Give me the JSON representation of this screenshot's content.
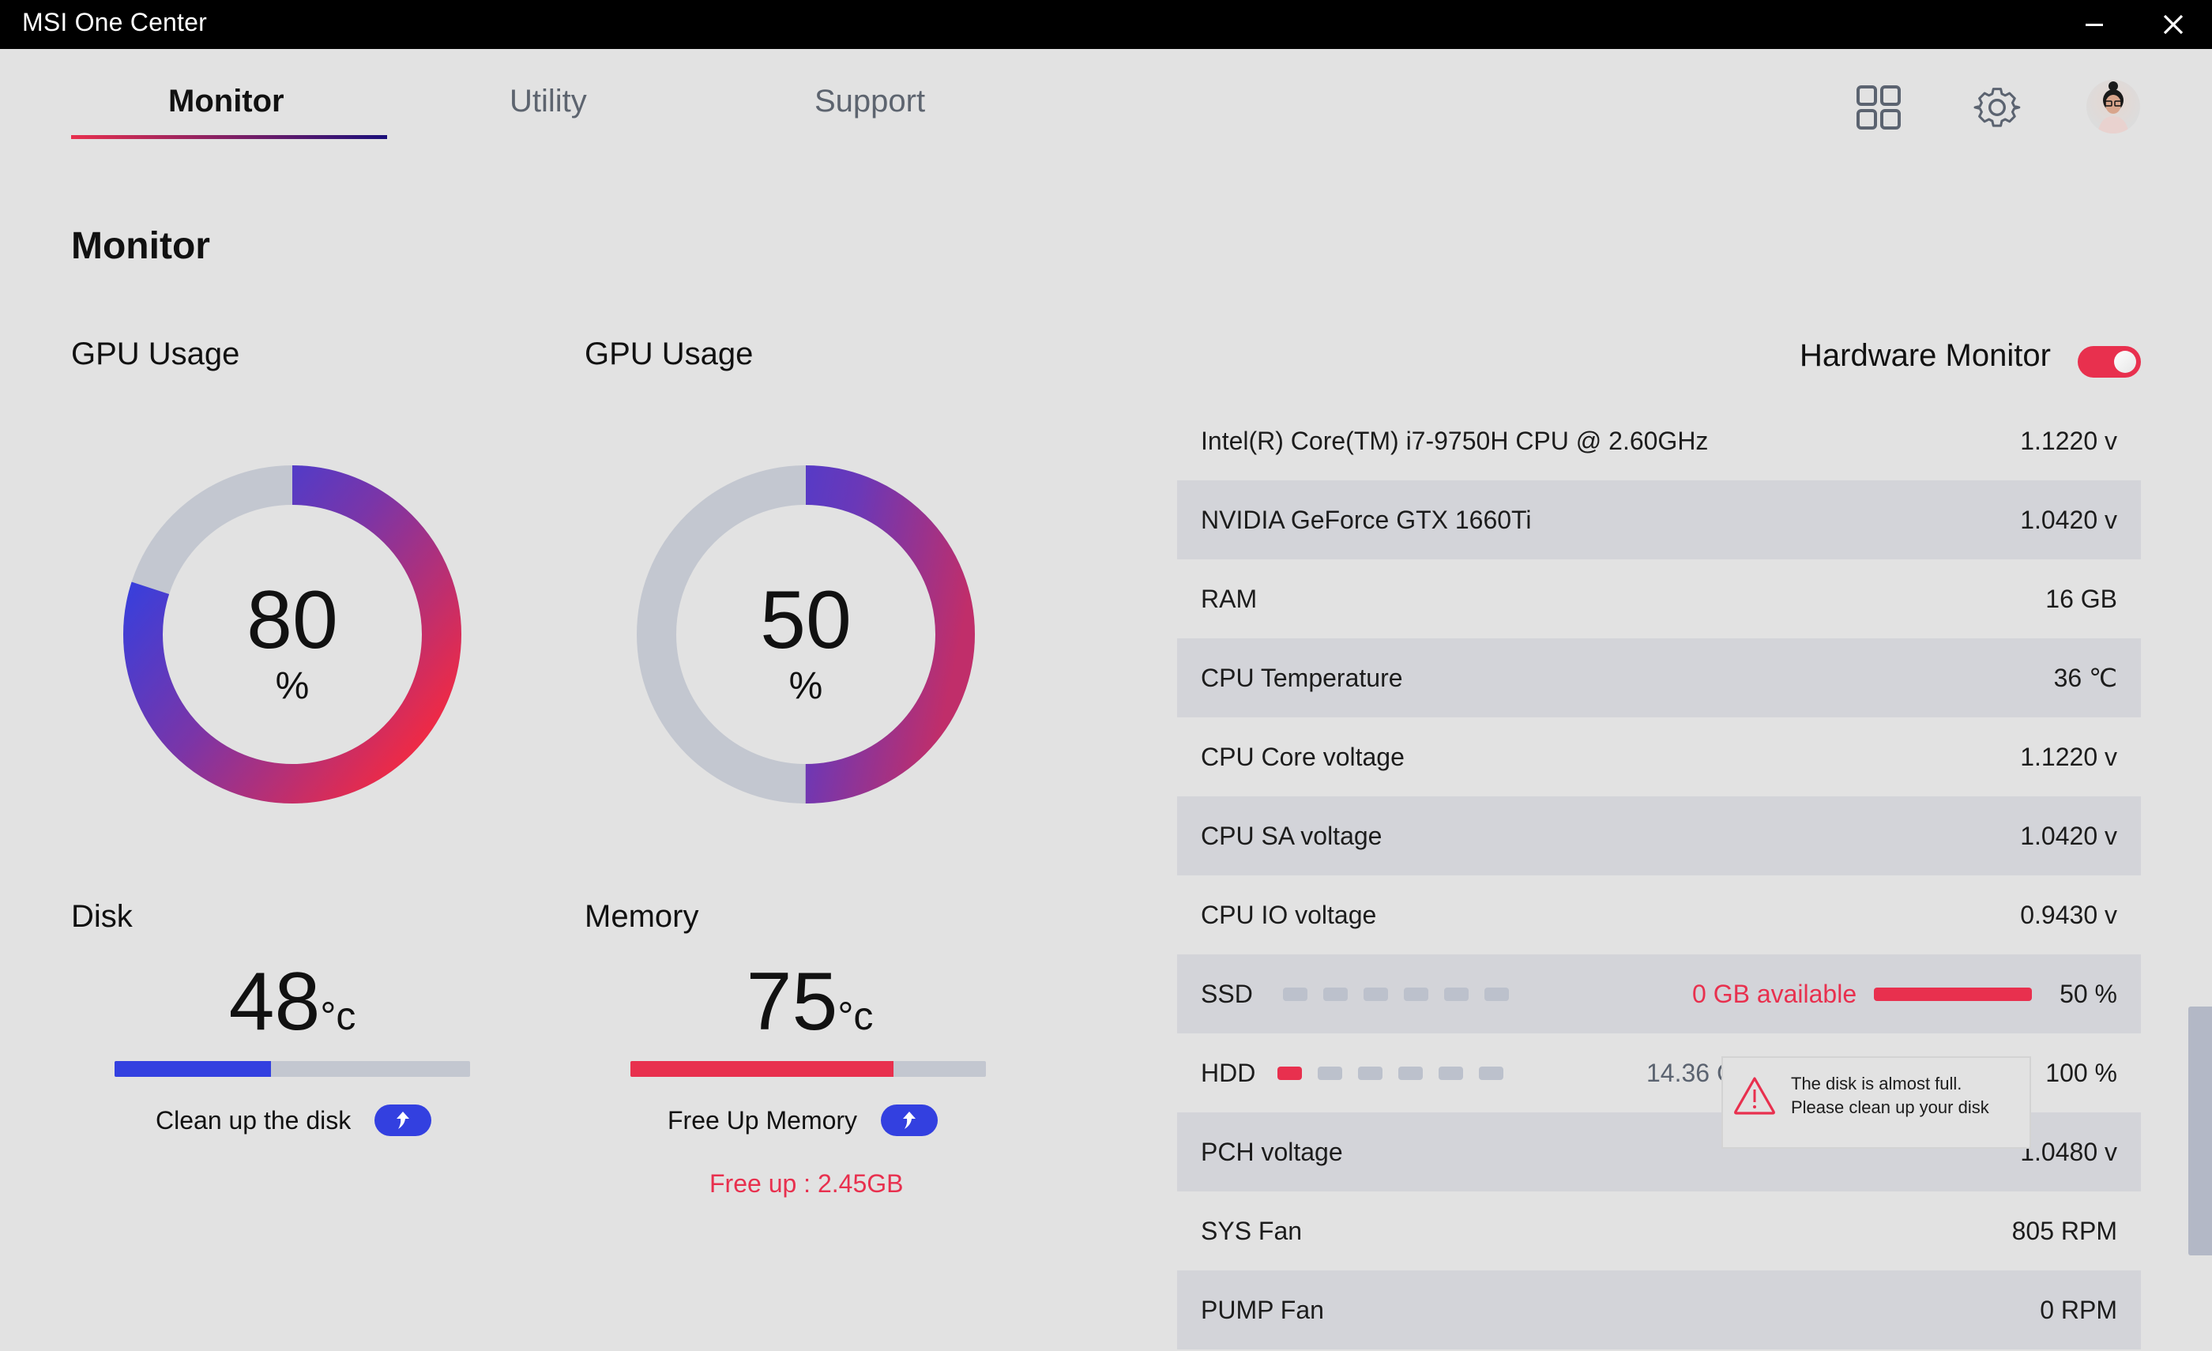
{
  "window": {
    "title": "MSI One Center",
    "minimize_icon": "minimize-icon",
    "close_icon": "close-icon"
  },
  "tabs": [
    {
      "label": "Monitor",
      "active": true
    },
    {
      "label": "Utility",
      "active": false
    },
    {
      "label": "Support",
      "active": false
    }
  ],
  "header_icons": [
    "grid-icon",
    "gear-icon",
    "avatar"
  ],
  "page": {
    "title": "Monitor"
  },
  "gauges": [
    {
      "label": "GPU Usage",
      "value": "80",
      "unit": "%",
      "percent": 80
    },
    {
      "label": "GPU Usage",
      "value": "50",
      "unit": "%",
      "percent": 50
    }
  ],
  "disk": {
    "label": "Disk",
    "temp_value": "48",
    "temp_unit": "°c",
    "bar_percent": 44,
    "bar_color": "#3340e0",
    "action_label": "Clean up the disk"
  },
  "memory": {
    "label": "Memory",
    "temp_value": "75",
    "temp_unit": "°c",
    "bar_percent": 74,
    "bar_color": "#e8304e",
    "action_label": "Free Up Memory",
    "freeup_text": "Free up : 2.45GB"
  },
  "hardware_monitor": {
    "label": "Hardware Monitor",
    "enabled": true,
    "rows": [
      {
        "name": "Intel(R) Core(TM) i7-9750H CPU @ 2.60GHz",
        "value": "1.1220 v"
      },
      {
        "name": "NVIDIA GeForce GTX 1660Ti",
        "value": "1.0420 v"
      },
      {
        "name": "RAM",
        "value": "16 GB"
      },
      {
        "name": "CPU Temperature",
        "value": "36 ℃"
      },
      {
        "name": "CPU Core voltage",
        "value": "1.1220 v"
      },
      {
        "name": "CPU SA voltage",
        "value": "1.0420 v"
      },
      {
        "name": "CPU IO voltage",
        "value": "0.9430 v"
      },
      {
        "name": "SSD",
        "value": "50 %",
        "available": "0 GB available",
        "blocks_on": 0,
        "blocks_total": 6
      },
      {
        "name": "HDD",
        "value": "100 %",
        "available": "14.36 GB available",
        "blocks_on": 1,
        "blocks_total": 6
      },
      {
        "name": "PCH voltage",
        "value": "1.0480 v"
      },
      {
        "name": "SYS Fan",
        "value": "805 RPM"
      },
      {
        "name": "PUMP Fan",
        "value": "0 RPM"
      }
    ]
  },
  "tooltip": {
    "icon": "warning-icon",
    "line1": "The disk is almost full.",
    "line2": "Please clean up your disk"
  },
  "colors": {
    "accent_red": "#e8304e",
    "accent_blue": "#3340e0",
    "track_gray": "#c3c7d0",
    "row_alt": "#d3d4d9",
    "background": "#e2e2e2"
  }
}
